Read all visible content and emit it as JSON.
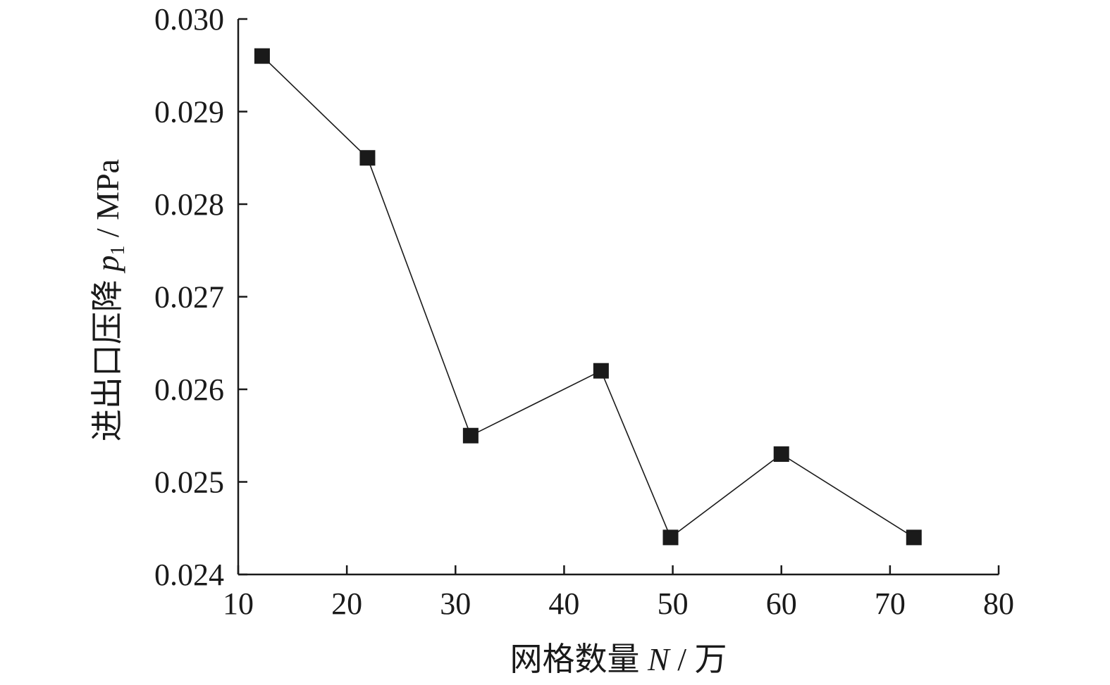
{
  "chart_data": {
    "type": "line",
    "title": "",
    "xlabel": {
      "main": "网格数量 ",
      "var": "N",
      "unit": " / 万"
    },
    "ylabel": {
      "main": "进出口压降 ",
      "var": "p",
      "sub": "1",
      "unit": " / MPa"
    },
    "xlim": [
      10,
      80
    ],
    "ylim": [
      0.024,
      0.03
    ],
    "xticks": [
      10,
      20,
      30,
      40,
      50,
      60,
      70,
      80
    ],
    "xtick_labels": [
      "10",
      "20",
      "30",
      "40",
      "50",
      "60",
      "70",
      "80"
    ],
    "yticks": [
      0.024,
      0.025,
      0.026,
      0.027,
      0.028,
      0.029,
      0.03
    ],
    "ytick_labels": [
      "0.024",
      "0.025",
      "0.026",
      "0.027",
      "0.028",
      "0.029",
      "0.030"
    ],
    "grid": false,
    "series": [
      {
        "marker": "square",
        "color": "#1a1a1a",
        "x": [
          12.2,
          21.9,
          31.4,
          43.4,
          49.8,
          60.0,
          72.2
        ],
        "y": [
          0.0296,
          0.0285,
          0.0255,
          0.0262,
          0.0244,
          0.0253,
          0.0244
        ]
      }
    ]
  }
}
